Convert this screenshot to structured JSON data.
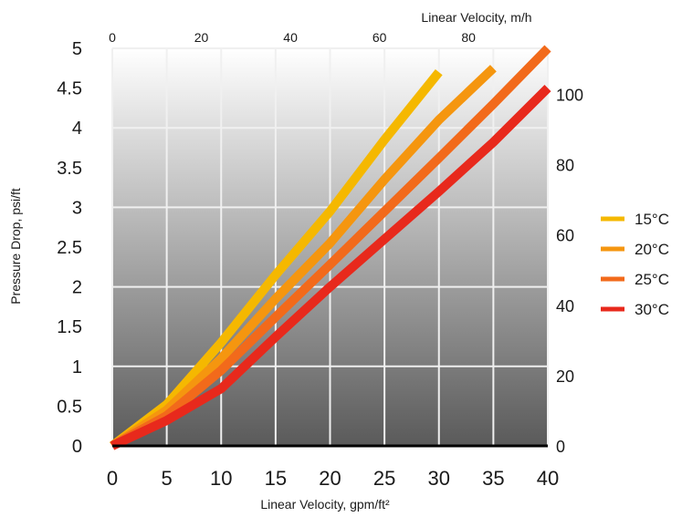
{
  "chart_data": {
    "type": "line",
    "title": "",
    "xlabel": "Linear Velocity, gpm/ft²",
    "ylabel": "Pressure Drop, psi/ft",
    "top_axis_label": "Linear Velocity, m/h",
    "right_axis_label": "",
    "xlim": [
      0,
      40
    ],
    "ylim": [
      0,
      5
    ],
    "top_axis_ticks": [
      "0",
      "20",
      "40",
      "60",
      "80"
    ],
    "right_axis_ticks": [
      "0",
      "20",
      "40",
      "60",
      "80",
      "100"
    ],
    "x_tick_labels": [
      "0",
      "5",
      "10",
      "15",
      "20",
      "25",
      "30",
      "35",
      "40"
    ],
    "y_tick_labels": [
      "0",
      "0.5",
      "1",
      "1.5",
      "2",
      "2.5",
      "3",
      "3.5",
      "4",
      "4.5",
      "5"
    ],
    "grid": true,
    "legend_position": "right",
    "series": [
      {
        "name": "15°C",
        "color": "#F5B800",
        "x": [
          0,
          5,
          10,
          15,
          20,
          25,
          30
        ],
        "y": [
          0,
          0.52,
          1.3,
          2.15,
          2.95,
          3.85,
          4.7
        ]
      },
      {
        "name": "20°C",
        "color": "#F5960F",
        "x": [
          0,
          5,
          10,
          15,
          20,
          25,
          30,
          35
        ],
        "y": [
          0,
          0.45,
          1.1,
          1.85,
          2.55,
          3.35,
          4.1,
          4.75
        ]
      },
      {
        "name": "25°C",
        "color": "#F26A1B",
        "x": [
          0,
          5,
          10,
          15,
          20,
          25,
          30,
          35,
          40
        ],
        "y": [
          0,
          0.38,
          0.95,
          1.62,
          2.28,
          2.95,
          3.62,
          4.3,
          5.0
        ]
      },
      {
        "name": "30°C",
        "color": "#E8291C",
        "x": [
          0,
          5,
          10,
          15,
          20,
          25,
          30,
          35,
          40
        ],
        "y": [
          0,
          0.32,
          0.72,
          1.37,
          2.0,
          2.6,
          3.2,
          3.82,
          4.5
        ]
      }
    ]
  }
}
